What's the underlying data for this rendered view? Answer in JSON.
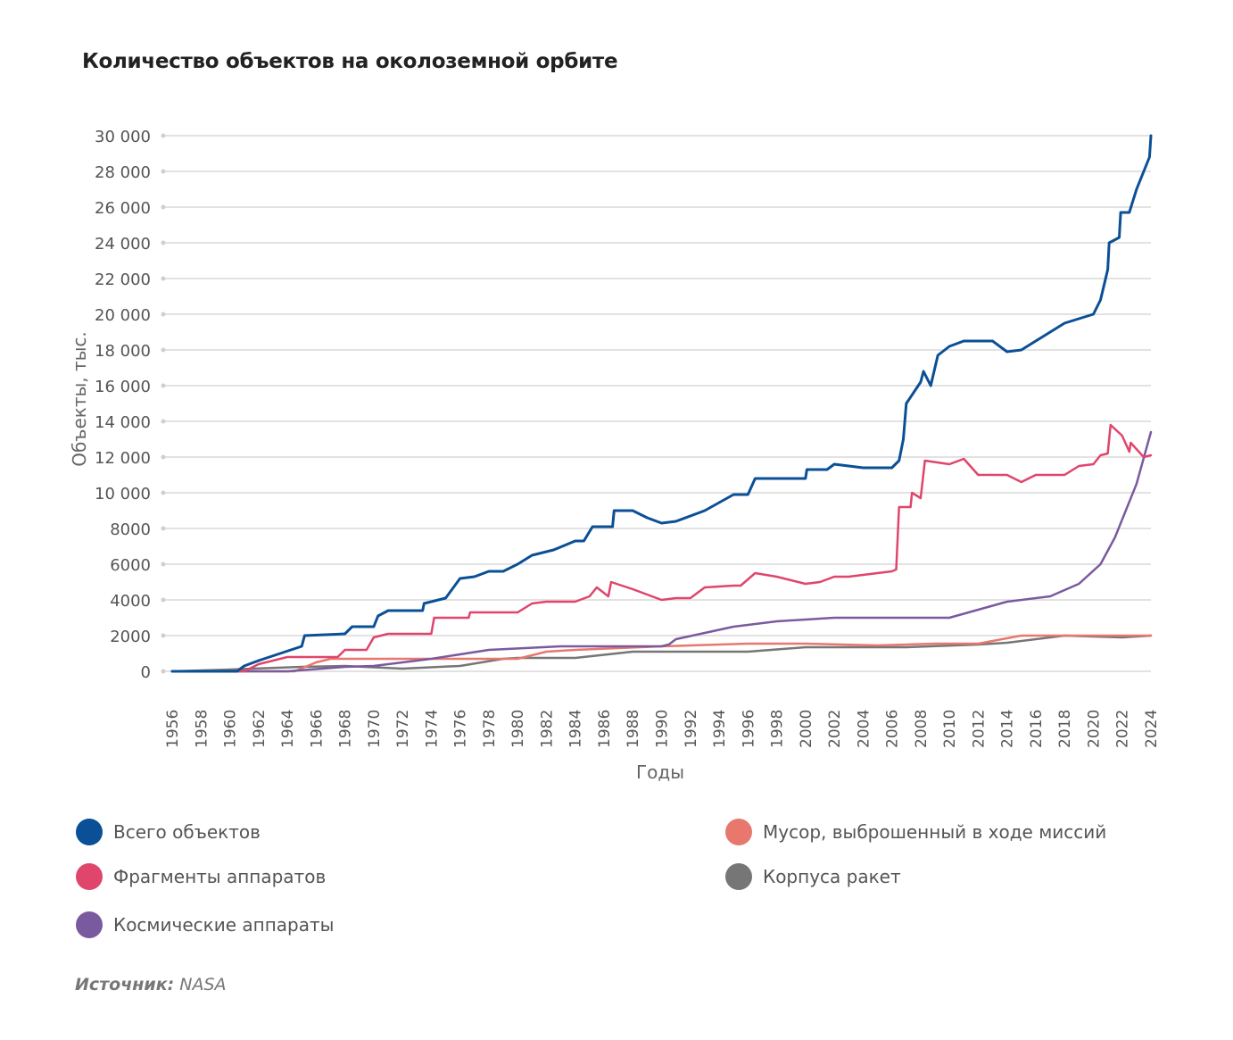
{
  "chart_data": {
    "type": "line",
    "title": "Количество объектов на околоземной орбите",
    "xlabel": "Годы",
    "ylabel": "Объекты, тыс.",
    "xlim": [
      1956,
      2024
    ],
    "ylim": [
      0,
      30000
    ],
    "grid": true,
    "legend_placement": "bottom",
    "x_ticks": [
      "1956",
      "1958",
      "1960",
      "1962",
      "1964",
      "1966",
      "1968",
      "1970",
      "1972",
      "1974",
      "1976",
      "1978",
      "1980",
      "1982",
      "1984",
      "1986",
      "1988",
      "1990",
      "1992",
      "1994",
      "1996",
      "1998",
      "2000",
      "2002",
      "2004",
      "2006",
      "2008",
      "2010",
      "2012",
      "2014",
      "2016",
      "2018",
      "2020",
      "2022",
      "2024"
    ],
    "y_ticks": [
      {
        "value": 0,
        "label": "0"
      },
      {
        "value": 2000,
        "label": "2000"
      },
      {
        "value": 4000,
        "label": "4000"
      },
      {
        "value": 6000,
        "label": "6000"
      },
      {
        "value": 8000,
        "label": "8000"
      },
      {
        "value": 10000,
        "label": "10 000"
      },
      {
        "value": 12000,
        "label": "12 000"
      },
      {
        "value": 14000,
        "label": "14 000"
      },
      {
        "value": 16000,
        "label": "16 000"
      },
      {
        "value": 18000,
        "label": "18 000"
      },
      {
        "value": 20000,
        "label": "20 000"
      },
      {
        "value": 22000,
        "label": "22 000"
      },
      {
        "value": 24000,
        "label": "24 000"
      },
      {
        "value": 26000,
        "label": "26 000"
      },
      {
        "value": 28000,
        "label": "28 000"
      },
      {
        "value": 30000,
        "label": "30 000"
      }
    ],
    "series": [
      {
        "name": "Всего объектов",
        "color": "#0b4f96",
        "points": [
          [
            1956,
            0
          ],
          [
            1960.5,
            0
          ],
          [
            1961,
            300
          ],
          [
            1962,
            600
          ],
          [
            1965,
            1400
          ],
          [
            1965.2,
            2000
          ],
          [
            1968,
            2100
          ],
          [
            1968.5,
            2500
          ],
          [
            1970,
            2500
          ],
          [
            1970.3,
            3100
          ],
          [
            1971,
            3400
          ],
          [
            1973.4,
            3400
          ],
          [
            1973.5,
            3800
          ],
          [
            1975,
            4100
          ],
          [
            1976,
            5200
          ],
          [
            1977,
            5300
          ],
          [
            1978,
            5600
          ],
          [
            1979,
            5600
          ],
          [
            1980,
            6000
          ],
          [
            1981,
            6500
          ],
          [
            1982.5,
            6800
          ],
          [
            1984,
            7300
          ],
          [
            1984.6,
            7300
          ],
          [
            1985.2,
            8100
          ],
          [
            1986.6,
            8100
          ],
          [
            1986.7,
            9000
          ],
          [
            1988,
            9000
          ],
          [
            1989,
            8600
          ],
          [
            1990,
            8300
          ],
          [
            1991,
            8400
          ],
          [
            1993,
            9000
          ],
          [
            1995,
            9900
          ],
          [
            1996,
            9900
          ],
          [
            1996.5,
            10800
          ],
          [
            2000,
            10800
          ],
          [
            2000.1,
            11300
          ],
          [
            2001.5,
            11300
          ],
          [
            2002,
            11600
          ],
          [
            2004,
            11400
          ],
          [
            2006,
            11400
          ],
          [
            2006.5,
            11800
          ],
          [
            2006.8,
            13000
          ],
          [
            2007,
            15000
          ],
          [
            2008,
            16200
          ],
          [
            2008.2,
            16800
          ],
          [
            2008.7,
            16000
          ],
          [
            2009.2,
            17700
          ],
          [
            2010,
            18200
          ],
          [
            2011,
            18500
          ],
          [
            2013,
            18500
          ],
          [
            2014,
            17900
          ],
          [
            2015,
            18000
          ],
          [
            2016,
            18500
          ],
          [
            2018,
            19500
          ],
          [
            2020,
            20000
          ],
          [
            2020.5,
            20800
          ],
          [
            2021,
            22500
          ],
          [
            2021.1,
            24000
          ],
          [
            2021.8,
            24300
          ],
          [
            2021.9,
            25700
          ],
          [
            2022.5,
            25700
          ],
          [
            2023,
            27000
          ],
          [
            2023.9,
            28800
          ],
          [
            2024,
            30000
          ]
        ]
      },
      {
        "name": "Фрагменты аппаратов",
        "color": "#e0456b",
        "points": [
          [
            1956,
            0
          ],
          [
            1961,
            0
          ],
          [
            1962,
            400
          ],
          [
            1964,
            800
          ],
          [
            1967.5,
            800
          ],
          [
            1968,
            1200
          ],
          [
            1969.5,
            1200
          ],
          [
            1970,
            1900
          ],
          [
            1971,
            2100
          ],
          [
            1974,
            2100
          ],
          [
            1974.2,
            3000
          ],
          [
            1976.6,
            3000
          ],
          [
            1976.7,
            3300
          ],
          [
            1980,
            3300
          ],
          [
            1981,
            3800
          ],
          [
            1982,
            3900
          ],
          [
            1984,
            3900
          ],
          [
            1985,
            4200
          ],
          [
            1985.5,
            4700
          ],
          [
            1986.3,
            4200
          ],
          [
            1986.5,
            5000
          ],
          [
            1988,
            4600
          ],
          [
            1990,
            4000
          ],
          [
            1991,
            4100
          ],
          [
            1992,
            4100
          ],
          [
            1993,
            4700
          ],
          [
            1995,
            4800
          ],
          [
            1995.5,
            4800
          ],
          [
            1996.5,
            5500
          ],
          [
            1998,
            5300
          ],
          [
            2000,
            4900
          ],
          [
            2001,
            5000
          ],
          [
            2002,
            5300
          ],
          [
            2003,
            5300
          ],
          [
            2006,
            5600
          ],
          [
            2006.3,
            5700
          ],
          [
            2006.5,
            9200
          ],
          [
            2007.3,
            9200
          ],
          [
            2007.4,
            10000
          ],
          [
            2008,
            9700
          ],
          [
            2008.3,
            11800
          ],
          [
            2010,
            11600
          ],
          [
            2011,
            11900
          ],
          [
            2012,
            11000
          ],
          [
            2014,
            11000
          ],
          [
            2015,
            10600
          ],
          [
            2016,
            11000
          ],
          [
            2018,
            11000
          ],
          [
            2019,
            11500
          ],
          [
            2020,
            11600
          ],
          [
            2020.5,
            12100
          ],
          [
            2021,
            12200
          ],
          [
            2021.2,
            13800
          ],
          [
            2022,
            13200
          ],
          [
            2022.5,
            12300
          ],
          [
            2022.6,
            12800
          ],
          [
            2023.5,
            12000
          ],
          [
            2024,
            12100
          ]
        ]
      },
      {
        "name": "Космические аппараты",
        "color": "#7a5a9e",
        "points": [
          [
            1956,
            0
          ],
          [
            1964,
            0
          ],
          [
            1968,
            250
          ],
          [
            1970,
            300
          ],
          [
            1974,
            700
          ],
          [
            1978,
            1200
          ],
          [
            1983,
            1400
          ],
          [
            1990,
            1400
          ],
          [
            1990.5,
            1500
          ],
          [
            1991,
            1800
          ],
          [
            1995,
            2500
          ],
          [
            1998,
            2800
          ],
          [
            2002,
            3000
          ],
          [
            2010,
            3000
          ],
          [
            2014,
            3900
          ],
          [
            2017,
            4200
          ],
          [
            2019,
            4900
          ],
          [
            2020.5,
            6000
          ],
          [
            2021.5,
            7500
          ],
          [
            2023,
            10500
          ],
          [
            2024,
            13400
          ]
        ]
      },
      {
        "name": "Мусор, выброшенный в ходе миссий",
        "color": "#e8776e",
        "points": [
          [
            1956,
            0
          ],
          [
            1964.5,
            0
          ],
          [
            1966,
            500
          ],
          [
            1967,
            700
          ],
          [
            1980,
            700
          ],
          [
            1982,
            1100
          ],
          [
            1984,
            1200
          ],
          [
            1990,
            1400
          ],
          [
            1996,
            1550
          ],
          [
            2000,
            1550
          ],
          [
            2005,
            1450
          ],
          [
            2009,
            1550
          ],
          [
            2012,
            1550
          ],
          [
            2015,
            2000
          ],
          [
            2024,
            2000
          ]
        ]
      },
      {
        "name": "Корпуса ракет",
        "color": "#767676",
        "points": [
          [
            1956,
            0
          ],
          [
            1960,
            100
          ],
          [
            1965,
            250
          ],
          [
            1968,
            300
          ],
          [
            1972,
            150
          ],
          [
            1976,
            300
          ],
          [
            1979,
            700
          ],
          [
            1980,
            750
          ],
          [
            1984,
            750
          ],
          [
            1988,
            1100
          ],
          [
            1996,
            1100
          ],
          [
            2000,
            1350
          ],
          [
            2007,
            1350
          ],
          [
            2012,
            1500
          ],
          [
            2014,
            1600
          ],
          [
            2018,
            2000
          ],
          [
            2022,
            1900
          ],
          [
            2024,
            2000
          ]
        ]
      }
    ]
  },
  "legend": [
    {
      "label": "Всего объектов",
      "color": "#0b4f96"
    },
    {
      "label": "Фрагменты аппаратов",
      "color": "#e0456b"
    },
    {
      "label": "Космические аппараты",
      "color": "#7a5a9e"
    },
    {
      "label": "Мусор, выброшенный в ходе миссий",
      "color": "#e8776e"
    },
    {
      "label": "Корпуса ракет",
      "color": "#767676"
    }
  ],
  "source": {
    "label": "Источник:",
    "value": "NASA"
  }
}
